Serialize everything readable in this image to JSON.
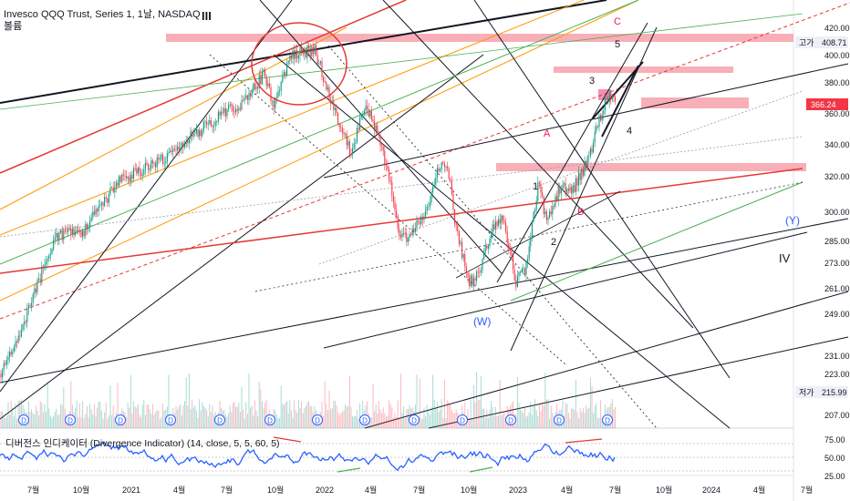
{
  "header": {
    "title": "Invesco QQQ Trust, Series 1, 1날, NASDAQ",
    "volume_label": "볼륨",
    "indicator_label": "디버전스 인디케이터 (Divergence Indicator) (14, close, 5, 5, 60, 5)"
  },
  "price_axis": {
    "ticks": [
      "420.00",
      "400.00",
      "380.00",
      "360.00",
      "340.00",
      "320.00",
      "300.00",
      "285.00",
      "273.00",
      "261.00",
      "249.00",
      "231.00",
      "223.00",
      "207.00"
    ],
    "high_label": "고가",
    "high_value": "408.71",
    "current_value": "366.24",
    "low_label": "저가",
    "low_value": "215.99"
  },
  "indicator_axis": {
    "ticks": [
      "75.00",
      "50.00",
      "25.00"
    ]
  },
  "time_axis": {
    "ticks": [
      "7월",
      "10월",
      "2021",
      "4월",
      "7월",
      "10월",
      "2022",
      "4월",
      "7월",
      "10월",
      "2023",
      "4월",
      "7월",
      "10월",
      "2024",
      "4월",
      "7월"
    ]
  },
  "annotations": {
    "wave_III": "III",
    "wave_IV": "IV",
    "wave_W": "(W)",
    "wave_Y": "(Y)",
    "wave_A": "A",
    "wave_B": "B",
    "wave_C": "C",
    "wave_1": "1",
    "wave_2": "2",
    "wave_3": "3",
    "wave_4": "4",
    "wave_5": "5",
    "dividend_marker": "D"
  },
  "colors": {
    "up_candle": "#089981",
    "down_candle": "#f23645",
    "zone": "#f7a1aa",
    "indicator_line": "#2962ff",
    "red_line": "#e53935",
    "orange_line": "#ff9800",
    "green_line": "#4caf50"
  },
  "chart_data": {
    "type": "candlestick",
    "symbol": "QQQ",
    "interval": "1D",
    "price_range": [
      207,
      420
    ],
    "indicator_range": [
      25,
      75
    ],
    "key_levels": [
      {
        "t": "2021-11",
        "price": 408.71,
        "label": "고가"
      },
      {
        "t": "2022-10",
        "price": 260
      },
      {
        "t": "2023-01",
        "price": 261
      },
      {
        "t": "2023-07",
        "price": 366.24
      }
    ]
  }
}
